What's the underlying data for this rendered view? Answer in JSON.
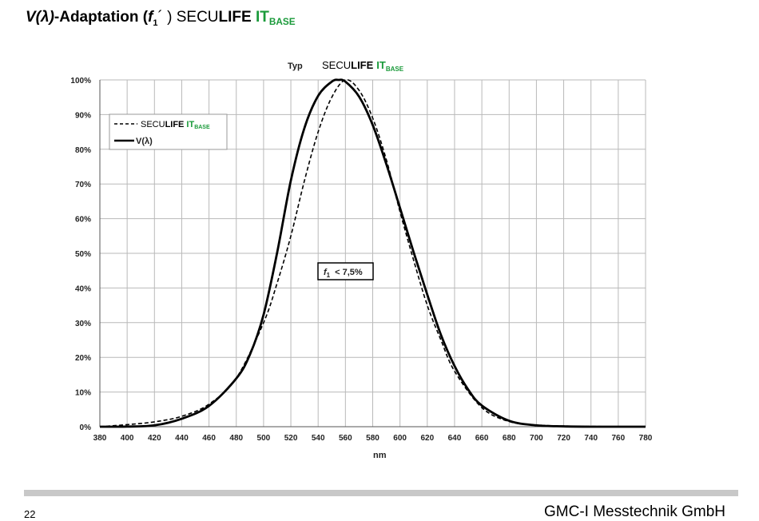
{
  "title": {
    "part1": "V(λ)",
    "part2": "-Adaptation (",
    "f": "f",
    "f_sub": "1",
    "part3": "´ ) SECU",
    "bold": "LIFE ",
    "it": "IT",
    "base": "BASE"
  },
  "footer": {
    "page": "22",
    "company": "GMC-I Messtechnik GmbH"
  },
  "colors": {
    "accent_green": "#1a9a3a",
    "grid": "#b9b9b9",
    "curve": "#000000",
    "footer_bar": "#c8c8c8"
  },
  "chart_data": {
    "type": "line",
    "title_prefix": "Typ",
    "title": {
      "secu": "SECU",
      "life": "LIFE",
      "it": "IT",
      "base": "BASE"
    },
    "xlabel": "nm",
    "ylabel": "",
    "xlim": [
      380,
      780
    ],
    "ylim": [
      0,
      100
    ],
    "x_ticks": [
      "380",
      "400",
      "420",
      "440",
      "460",
      "480",
      "500",
      "520",
      "540",
      "560",
      "580",
      "600",
      "620",
      "640",
      "660",
      "680",
      "700",
      "720",
      "740",
      "760",
      "780"
    ],
    "y_ticks": [
      "0%",
      "10%",
      "20%",
      "30%",
      "40%",
      "50%",
      "60%",
      "70%",
      "80%",
      "90%",
      "100%"
    ],
    "grid": true,
    "legend_position": "top-left",
    "annotation": {
      "f": "f",
      "sub": "1",
      "text": "< 7,5%"
    },
    "legend": [
      {
        "style": "dashed",
        "secu": "SECU",
        "life": "LIFE",
        "it": "IT",
        "base": "BASE"
      },
      {
        "style": "solid",
        "label": "V(λ)"
      }
    ],
    "series": [
      {
        "name": "SECULIFE ITBASE",
        "style": "dashed",
        "x": [
          380,
          400,
          420,
          440,
          460,
          480,
          500,
          510,
          520,
          530,
          540,
          550,
          560,
          570,
          580,
          590,
          600,
          610,
          620,
          630,
          640,
          660,
          680,
          700,
          720,
          740,
          760,
          780
        ],
        "y": [
          0,
          0.6,
          1.4,
          3,
          6.5,
          14,
          30,
          41.5,
          55,
          71,
          85,
          95,
          100,
          97,
          89,
          77,
          62,
          48,
          35,
          25,
          16,
          5.5,
          1.5,
          0.5,
          0.2,
          0.1,
          0,
          0
        ]
      },
      {
        "name": "V(λ)",
        "style": "solid",
        "x": [
          380,
          400,
          420,
          440,
          460,
          480,
          490,
          500,
          510,
          520,
          530,
          540,
          550,
          555,
          560,
          570,
          580,
          590,
          600,
          610,
          620,
          630,
          640,
          650,
          660,
          680,
          700,
          720,
          740,
          760,
          780
        ],
        "y": [
          0,
          0.04,
          0.4,
          2.3,
          6,
          13.9,
          20.8,
          32.3,
          50.3,
          71,
          86.2,
          95.4,
          99.5,
          100,
          99.5,
          95.2,
          87,
          75.7,
          63.1,
          50.3,
          38.1,
          26.5,
          17.5,
          10.7,
          6.1,
          1.7,
          0.4,
          0.1,
          0,
          0,
          0
        ]
      }
    ]
  }
}
